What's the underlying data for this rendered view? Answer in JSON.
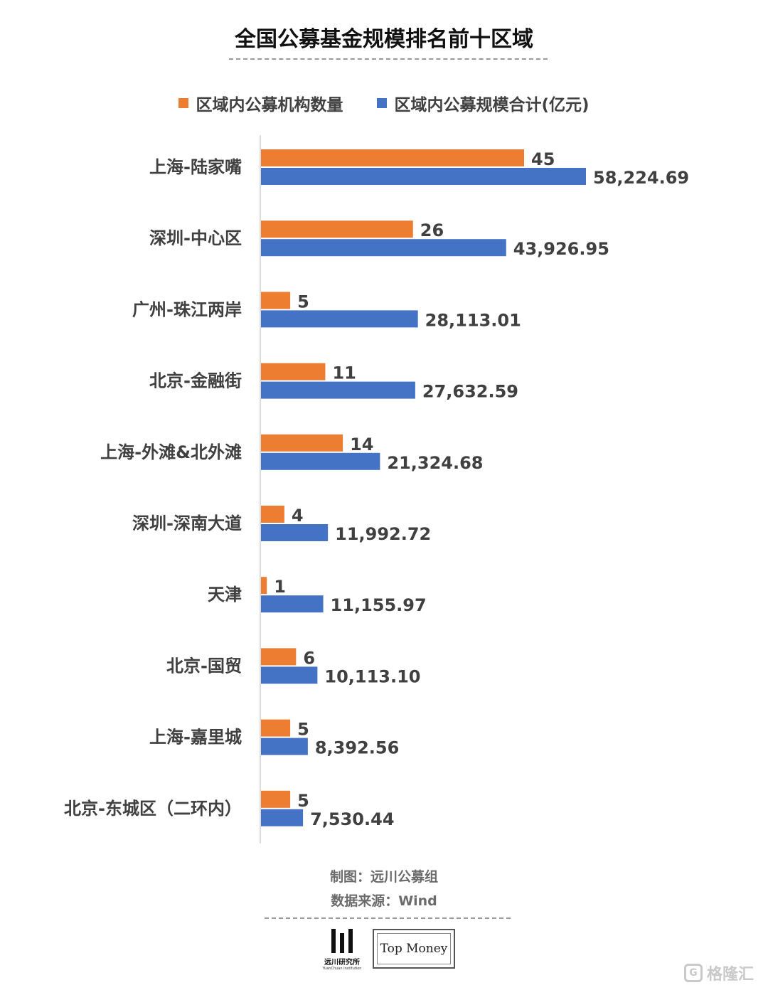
{
  "title": "全国公募基金规模排名前十区域",
  "footer": {
    "maker": "制图：远川公募组",
    "source": "数据来源：Wind"
  },
  "logos": {
    "yuanchuan_name": "远川研究所",
    "yuanchuan_sub": "YuanChuan Institution",
    "topmoney": "Top Money"
  },
  "watermark": "格隆汇",
  "colors": {
    "orange": "#ED7D31",
    "blue": "#4472C4"
  },
  "chart_data": {
    "type": "bar",
    "orientation": "horizontal",
    "grid": false,
    "legend_position": "top",
    "categories": [
      "上海-陆家嘴",
      "深圳-中心区",
      "广州-珠江两岸",
      "北京-金融街",
      "上海-外滩&北外滩",
      "深圳-深南大道",
      "天津",
      "北京-国贸",
      "上海-嘉里城",
      "北京-东城区（二环内）"
    ],
    "series": [
      {
        "name": "区域内公募机构数量",
        "color": "#ED7D31",
        "values": [
          45,
          26,
          5,
          11,
          14,
          4,
          1,
          6,
          5,
          5
        ],
        "labels": [
          "45",
          "26",
          "5",
          "11",
          "14",
          "4",
          "1",
          "6",
          "5",
          "5"
        ]
      },
      {
        "name": "区域内公募规模合计(亿元)",
        "color": "#4472C4",
        "values": [
          58224.69,
          43926.95,
          28113.01,
          27632.59,
          21324.68,
          11992.72,
          11155.97,
          10113.1,
          8392.56,
          7530.44
        ],
        "labels": [
          "58,224.69",
          "43,926.95",
          "28,113.01",
          "27,632.59",
          "21,324.68",
          "11,992.72",
          "11,155.97",
          "10,113.10",
          "8,392.56",
          "7,530.44"
        ]
      }
    ]
  }
}
